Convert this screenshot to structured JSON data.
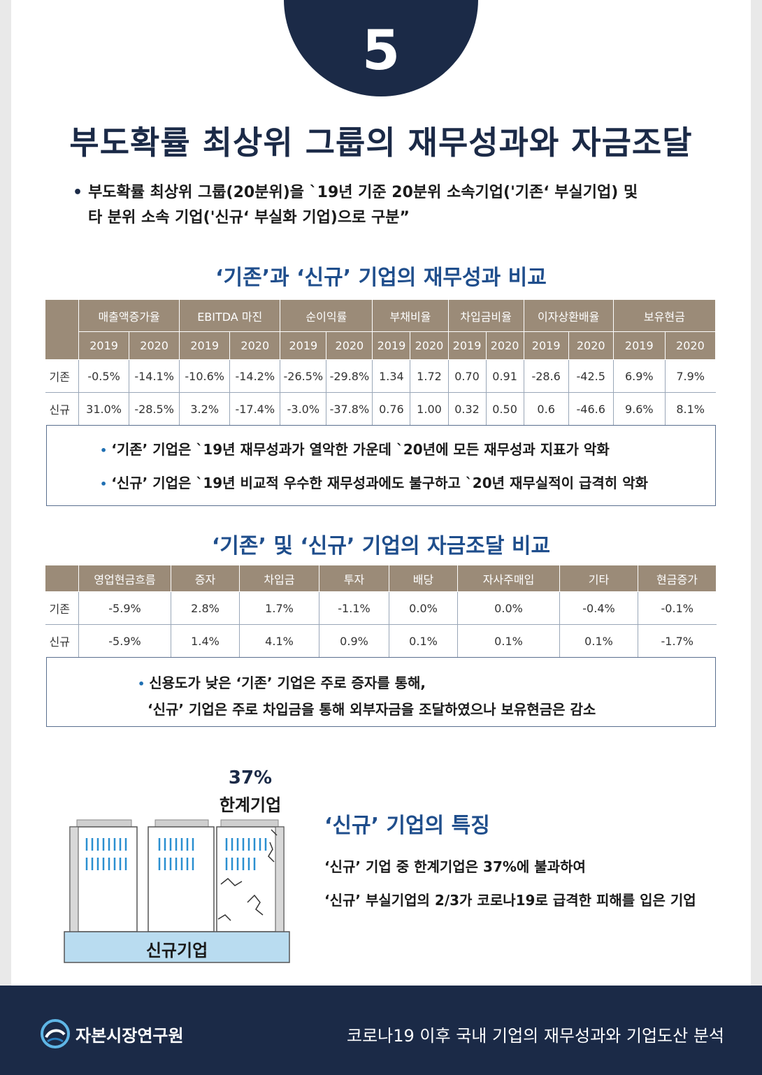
{
  "page": {
    "number": "5",
    "title": "부도확률 최상위 그룹의 재무성과와 자금조달",
    "intro_line1": "부도확률 최상위 그룹(20분위)을 `19년 기준 20분위 소속기업('기존‘ 부실기업) 및",
    "intro_line2": "타 분위 소속 기업('신규‘ 부실화 기업)으로 구분”"
  },
  "perf": {
    "title": "‘기존’과 ‘신규’ 기업의 재무성과 비교",
    "groups": [
      "매출액증가율",
      "EBITDA 마진",
      "순이익률",
      "부채비율",
      "차입금비율",
      "이자상환배율",
      "보유현금"
    ],
    "years": [
      "2019",
      "2020",
      "2019",
      "2020",
      "2019",
      "2020",
      "2019",
      "2020",
      "2019",
      "2020",
      "2019",
      "2020",
      "2019",
      "2020"
    ],
    "rows": [
      {
        "label": "기존",
        "cells": [
          "-0.5%",
          "-14.1%",
          "-10.6%",
          "-14.2%",
          "-26.5%",
          "-29.8%",
          "1.34",
          "1.72",
          "0.70",
          "0.91",
          "-28.6",
          "-42.5",
          "6.9%",
          "7.9%"
        ]
      },
      {
        "label": "신규",
        "cells": [
          "31.0%",
          "-28.5%",
          "3.2%",
          "-17.4%",
          "-3.0%",
          "-37.8%",
          "0.76",
          "1.00",
          "0.32",
          "0.50",
          "0.6",
          "-46.6",
          "9.6%",
          "8.1%"
        ]
      }
    ],
    "notes": [
      "‘기존’ 기업은 `19년 재무성과가 열악한 가운데 `20년에 모든 재무성과 지표가 악화",
      "‘신규’ 기업은 `19년 비교적 우수한 재무성과에도 불구하고 `20년 재무실적이 급격히 악화"
    ]
  },
  "fund": {
    "title": "‘기존’ 및 ‘신규’ 기업의 자금조달 비교",
    "headers": [
      "영업현금흐름",
      "증자",
      "차입금",
      "투자",
      "배당",
      "자사주매입",
      "기타",
      "현금증가"
    ],
    "rows": [
      {
        "label": "기존",
        "cells": [
          "-5.9%",
          "2.8%",
          "1.7%",
          "-1.1%",
          "0.0%",
          "0.0%",
          "-0.4%",
          "-0.1%"
        ]
      },
      {
        "label": "신규",
        "cells": [
          "-5.9%",
          "1.4%",
          "4.1%",
          "0.9%",
          "0.1%",
          "0.1%",
          "0.1%",
          "-1.7%"
        ]
      }
    ],
    "note_line1": "신용도가 낮은 ‘기존’ 기업은 주로 증자를 통해,",
    "note_line2": "‘신규’ 기업은 주로 차입금을 통해 외부자금을 조달하였으나 보유현금은 감소"
  },
  "feature": {
    "percent": "37%",
    "percent_label": "한계기업",
    "base_label": "신규기업",
    "title": "‘신규’ 기업의 특징",
    "line1": "‘신규’ 기업 중 한계기업은 37%에 불과하여",
    "line2": "‘신규’ 부실기업의 2/3가 코로나19로 급격한 피해를 입은 기업"
  },
  "footer": {
    "org": "자본시장연구원",
    "report": "코로나19 이후 국내 기업의 재무성과와 기업도산 분석"
  },
  "colors": {
    "navy": "#1b2a47",
    "accent_blue": "#1f4e8c",
    "header_brown": "#9b8b78",
    "building_base": "#b9dcf0"
  }
}
